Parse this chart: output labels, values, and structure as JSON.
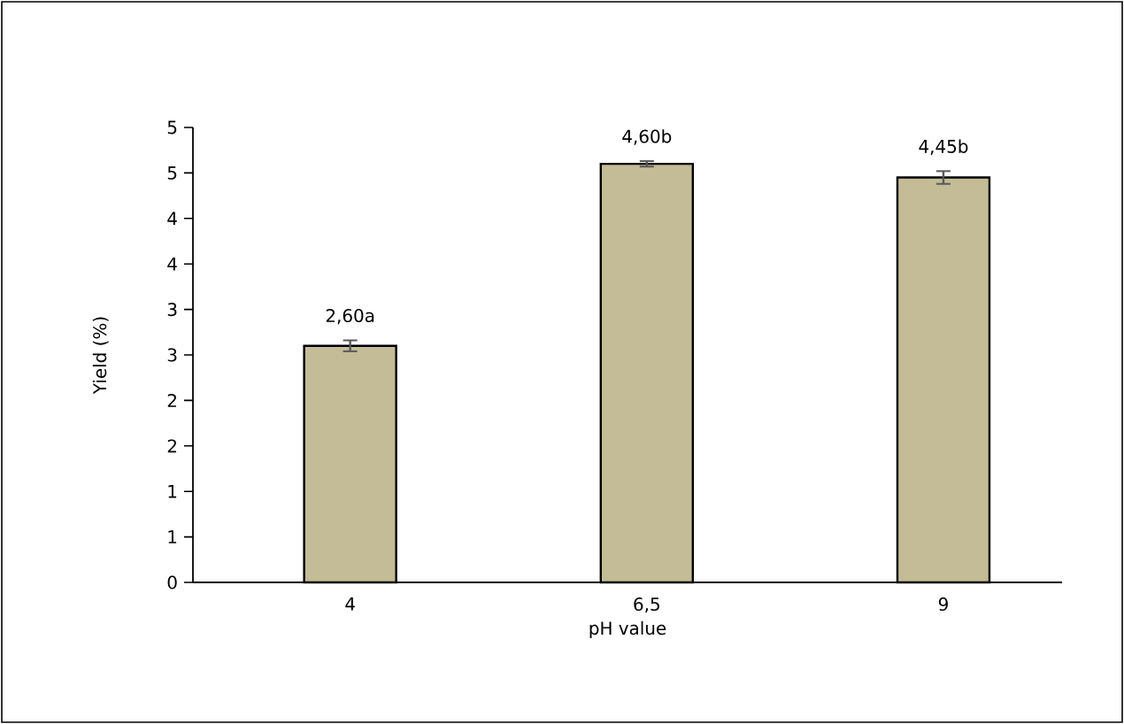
{
  "chart_data": {
    "type": "bar",
    "xlabel": "pH value",
    "ylabel": "Yield (%)",
    "categories": [
      "4",
      "6,5",
      "9"
    ],
    "values": [
      2.6,
      4.6,
      4.45
    ],
    "errors": [
      0.06,
      0.03,
      0.07
    ],
    "value_labels": [
      "2,60a",
      "4,60b",
      "4,45b"
    ],
    "color": "#c4bc96",
    "ylim": [
      0,
      5
    ],
    "yticks": [
      0,
      {
        "value": 0.5,
        "label": "1"
      },
      1,
      {
        "value": 1.5,
        "label": "2"
      },
      2,
      {
        "value": 2.5,
        "label": "3"
      },
      3,
      {
        "value": 3.5,
        "label": "4"
      },
      4,
      {
        "value": 4.5,
        "label": "5"
      },
      5
    ]
  }
}
